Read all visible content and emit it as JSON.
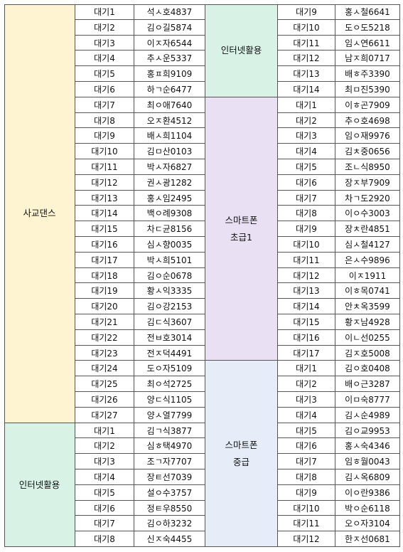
{
  "colors": {
    "dance": "#fef4d2",
    "internet": "#d9f2e6",
    "smart_basic": "#e9e0f4",
    "smart_mid": "#e6edf8",
    "border": "#555555"
  },
  "left": {
    "groups": [
      {
        "name_lines": [
          "사교댄스"
        ],
        "color": "dance",
        "count": 27
      },
      {
        "name_lines": [
          "인터넷활용"
        ],
        "color": "internet",
        "count": 8
      }
    ],
    "rows": [
      [
        "대기1",
        "석ㅅ호4837"
      ],
      [
        "대기2",
        "김ㅇ길5874"
      ],
      [
        "대기3",
        "이ㅈ자6544"
      ],
      [
        "대기4",
        "추ㅅ운5337"
      ],
      [
        "대기5",
        "홍ㅍ희9109"
      ],
      [
        "대기6",
        "하ㄱ순6477"
      ],
      [
        "대기7",
        "최ㅇ애7640"
      ],
      [
        "대기8",
        "오ㅈ환4512"
      ],
      [
        "대기9",
        "배ㅅ희1104"
      ],
      [
        "대기10",
        "김ㅁ산0103"
      ],
      [
        "대기11",
        "박ㅅ자6827"
      ],
      [
        "대기12",
        "권ㅅ광1282"
      ],
      [
        "대기13",
        "홍ㅅ임2495"
      ],
      [
        "대기14",
        "백ㅇ례9308"
      ],
      [
        "대기15",
        "차ㄷ균8156"
      ],
      [
        "대기16",
        "심ㅅ향0035"
      ],
      [
        "대기17",
        "박ㅅ희5101"
      ],
      [
        "대기18",
        "김ㅇ순0678"
      ],
      [
        "대기19",
        "황ㅅ익3335"
      ],
      [
        "대기20",
        "김ㅇ강2153"
      ],
      [
        "대기21",
        "김ㄷ식3607"
      ],
      [
        "대기22",
        "전ㅂ호3014"
      ],
      [
        "대기23",
        "전ㅈ덕4491"
      ],
      [
        "대기24",
        "도ㅇ자5109"
      ],
      [
        "대기25",
        "최ㅇ석2725"
      ],
      [
        "대기26",
        "양ㄷ식1105"
      ],
      [
        "대기27",
        "양ㅅ열7799"
      ],
      [
        "대기1",
        "김ㄱ식3877"
      ],
      [
        "대기2",
        "심ㅎ택4970"
      ],
      [
        "대기3",
        "조ㄱ자7707"
      ],
      [
        "대기4",
        "장ㅌ선7039"
      ],
      [
        "대기5",
        "설ㅇ수3757"
      ],
      [
        "대기6",
        "정ㅌ우8550"
      ],
      [
        "대기7",
        "김ㅇ하3232"
      ],
      [
        "대기8",
        "신ㅈ숙4455"
      ]
    ]
  },
  "right": {
    "groups": [
      {
        "name_lines": [
          "인터넷활용"
        ],
        "color": "internet",
        "count": 6
      },
      {
        "name_lines": [
          "스마트폰",
          "초급1"
        ],
        "color": "smart_basic",
        "count": 17
      },
      {
        "name_lines": [
          "스마트폰",
          "중급"
        ],
        "color": "smart_mid",
        "count": 12
      }
    ],
    "rows": [
      [
        "대기9",
        "홍ㅅ철6641"
      ],
      [
        "대기10",
        "도ㅇ도5218"
      ],
      [
        "대기11",
        "임ㅅ연6611"
      ],
      [
        "대기12",
        "남ㅈ희0717"
      ],
      [
        "대기13",
        "배ㅎ주3390"
      ],
      [
        "대기14",
        "최ㅁ진5390"
      ],
      [
        "대기1",
        "이ㅎ곤7909"
      ],
      [
        "대기2",
        "추ㅇ호4698"
      ],
      [
        "대기3",
        "임ㅇ재9976"
      ],
      [
        "대기4",
        "김ㅊ중0656"
      ],
      [
        "대기5",
        "조ㄴ식8950"
      ],
      [
        "대기6",
        "장ㅈ부7909"
      ],
      [
        "대기7",
        "차ㄱ도2920"
      ],
      [
        "대기8",
        "이ㅇ수3003"
      ],
      [
        "대기9",
        "장ㅊ란4851"
      ],
      [
        "대기10",
        "심ㅅ철4127"
      ],
      [
        "대기11",
        "은ㅅ수9896"
      ],
      [
        "대기12",
        "이ㅈ1911"
      ],
      [
        "대기13",
        "이ㅎ목0741"
      ],
      [
        "대기14",
        "안ㅊ옥3599"
      ],
      [
        "대기15",
        "황ㅈ남4928"
      ],
      [
        "대기16",
        "이ㄴ선0255"
      ],
      [
        "대기17",
        "김ㅈ호5008"
      ],
      [
        "대기1",
        "김ㅇ호0408"
      ],
      [
        "대기2",
        "배ㅇ근3287"
      ],
      [
        "대기3",
        "이ㅁ숙8777"
      ],
      [
        "대기4",
        "김ㅅ순4989"
      ],
      [
        "대기5",
        "김ㅇ교9953"
      ],
      [
        "대기6",
        "홍ㅅ숙4346"
      ],
      [
        "대기7",
        "임ㅎ월0043"
      ],
      [
        "대기8",
        "김ㅅ옥6809"
      ],
      [
        "대기9",
        "이ㅇ란9386"
      ],
      [
        "대기10",
        "박ㅇ순6118"
      ],
      [
        "대기11",
        "오ㅇ자3104"
      ],
      [
        "대기12",
        "한ㅈ선0681"
      ]
    ]
  }
}
